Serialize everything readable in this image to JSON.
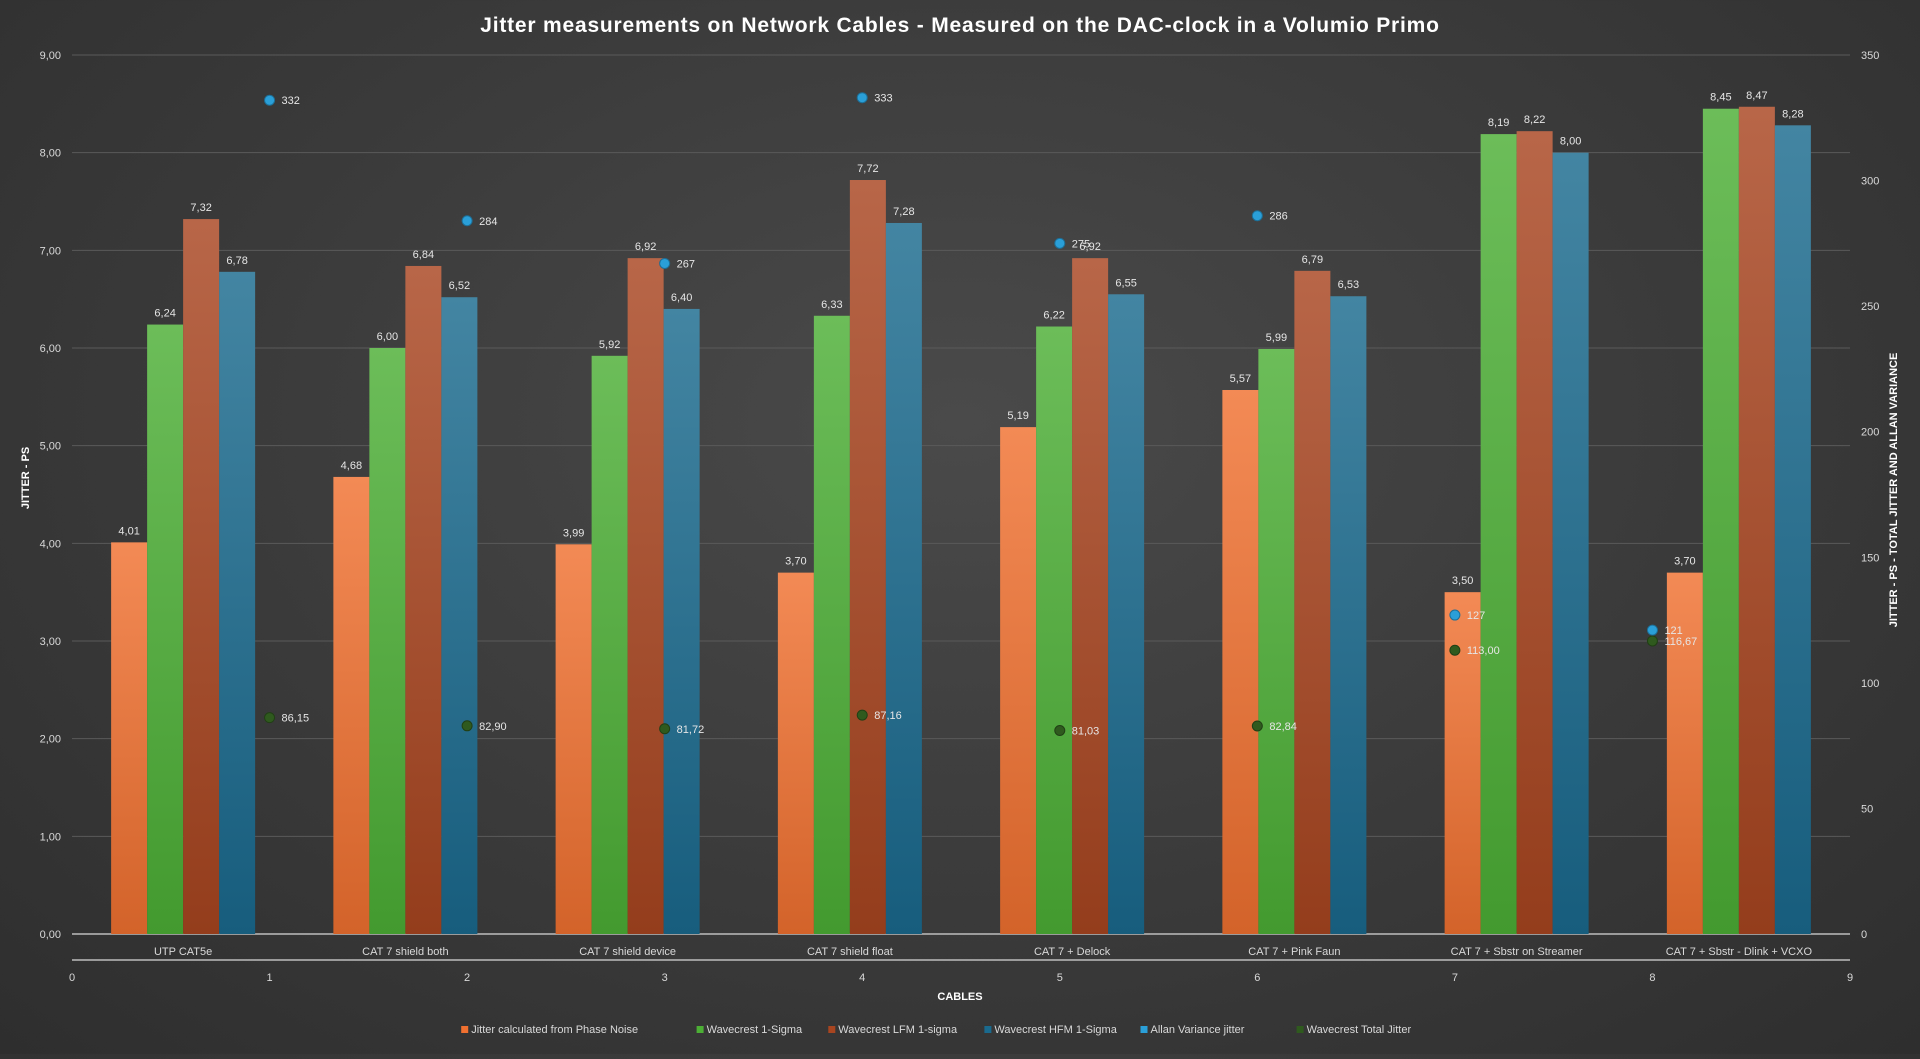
{
  "chart_data": {
    "type": "bar",
    "title": "Jitter measurements on Network Cables - Measured on the DAC-clock in a Volumio Primo",
    "xlabel": "CABLES",
    "ylabel": "JITTER - PS",
    "y2label": "JITTER - PS - TOTAL JITTER AND ALLAN VARIANCE",
    "categories": [
      "UTP CAT5e",
      "CAT 7 shield both",
      "CAT 7 shield device",
      "CAT 7 shield float",
      "CAT 7 + Delock",
      "CAT 7 + Pink Faun",
      "CAT 7 + Sbstr  on Streamer",
      "CAT 7 + Sbstr - Dlink + VCXO"
    ],
    "ylim": [
      0,
      9
    ],
    "y_ticks": [
      "0,00",
      "1,00",
      "2,00",
      "3,00",
      "4,00",
      "5,00",
      "6,00",
      "7,00",
      "8,00",
      "9,00"
    ],
    "y2lim": [
      0,
      350
    ],
    "y2_ticks": [
      "0",
      "50",
      "100",
      "150",
      "200",
      "250",
      "300",
      "350"
    ],
    "xlim": [
      0,
      9
    ],
    "x_ticks": [
      "0",
      "1",
      "2",
      "3",
      "4",
      "5",
      "6",
      "7",
      "8",
      "9"
    ],
    "grid": true,
    "legend_position": "bottom",
    "series": [
      {
        "name": "Jitter calculated from Phase Noise",
        "kind": "bar",
        "color": "#f07030",
        "values": [
          4.01,
          4.68,
          3.99,
          3.7,
          5.19,
          5.57,
          3.5,
          3.7
        ],
        "labels": [
          "4,01",
          "4,68",
          "3,99",
          "3,70",
          "5,19",
          "5,57",
          "3,50",
          "3,70"
        ]
      },
      {
        "name": "Wavecrest 1-Sigma",
        "kind": "bar",
        "color": "#4caf35",
        "values": [
          6.24,
          6.0,
          5.92,
          6.33,
          6.22,
          5.99,
          8.19,
          8.45
        ],
        "labels": [
          "6,24",
          "6,00",
          "5,92",
          "6,33",
          "6,22",
          "5,99",
          "8,19",
          "8,45"
        ]
      },
      {
        "name": "Wavecrest LFM 1-sigma",
        "kind": "bar",
        "color": "#a84520",
        "values": [
          7.32,
          6.84,
          6.92,
          7.72,
          6.92,
          6.79,
          8.22,
          8.47
        ],
        "labels": [
          "7,32",
          "6,84",
          "6,92",
          "7,72",
          "6,92",
          "6,79",
          "8,22",
          "8,47"
        ]
      },
      {
        "name": "Wavecrest HFM 1-Sigma",
        "kind": "bar",
        "color": "#1a6a8e",
        "values": [
          6.78,
          6.52,
          6.4,
          7.28,
          6.55,
          6.53,
          8.0,
          8.28
        ],
        "labels": [
          "6,78",
          "6,52",
          "6,40",
          "7,28",
          "6,55",
          "6,53",
          "8,00",
          "8,28"
        ]
      },
      {
        "name": "Allan Variance jitter",
        "kind": "scatter",
        "axis": "secondary",
        "color": "#2a9fd8",
        "x": [
          1,
          2,
          3,
          4,
          5,
          6,
          7,
          8
        ],
        "values": [
          332,
          284,
          267,
          333,
          275,
          286,
          127,
          121
        ],
        "labels": [
          "332",
          "284",
          "267",
          "333",
          "275",
          "286",
          "127",
          "121"
        ]
      },
      {
        "name": "Wavecrest Total Jitter",
        "kind": "scatter",
        "axis": "secondary",
        "color": "#2f5a1e",
        "x": [
          1,
          2,
          3,
          4,
          5,
          6,
          7,
          8
        ],
        "values": [
          86.15,
          82.9,
          81.72,
          87.16,
          81.03,
          82.84,
          113.0,
          116.67
        ],
        "labels": [
          "86,15",
          "82,90",
          "81,72",
          "87,16",
          "81,03",
          "82,84",
          "113,00",
          "116,67"
        ]
      }
    ]
  }
}
